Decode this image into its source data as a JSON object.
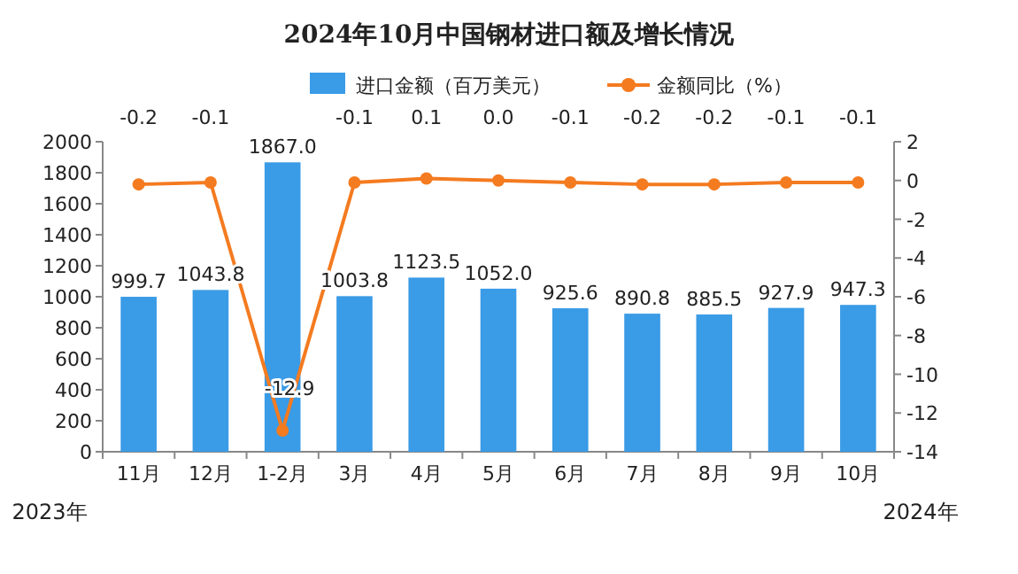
{
  "chart_data": {
    "type": "bar",
    "title": "2024年10月中国钢材进口额及增长情况",
    "categories": [
      "11月",
      "12月",
      "1-2月",
      "3月",
      "4月",
      "5月",
      "6月",
      "7月",
      "8月",
      "9月",
      "10月"
    ],
    "series": [
      {
        "name": "进口金额（百万美元）",
        "color": "#3a9be6",
        "values": [
          999.7,
          1043.8,
          1867.0,
          1003.8,
          1123.5,
          1052.0,
          925.6,
          890.8,
          885.5,
          927.9,
          947.3
        ],
        "value_labels": [
          "999.7",
          "1043.8",
          "1867.0",
          "1003.8",
          "1123.5",
          "1052.0",
          "925.6",
          "890.8",
          "885.5",
          "927.9",
          "947.3"
        ]
      },
      {
        "name": "金额同比（%）",
        "type": "line",
        "axis": "y2",
        "color": "#f47b20",
        "values": [
          -0.2,
          -0.1,
          -12.9,
          -0.1,
          0.1,
          0.0,
          -0.1,
          -0.2,
          -0.2,
          -0.1,
          -0.1
        ],
        "value_labels": [
          "-0.2",
          "-0.1",
          "-12.9",
          "-0.1",
          "0.1",
          "0.0",
          "-0.1",
          "-0.2",
          "-0.2",
          "-0.1",
          "-0.1"
        ]
      }
    ],
    "ylim": [
      0,
      2000
    ],
    "yticks": [
      0,
      200,
      400,
      600,
      800,
      1000,
      1200,
      1400,
      1600,
      1800,
      2000
    ],
    "y2lim": [
      -14,
      2
    ],
    "y2ticks": [
      -14,
      -12,
      -10,
      -8,
      -6,
      -4,
      -2,
      0,
      2
    ],
    "marker": "circle",
    "legend": "top",
    "grid": false,
    "annotations": [
      "2023年",
      "2024年"
    ]
  }
}
